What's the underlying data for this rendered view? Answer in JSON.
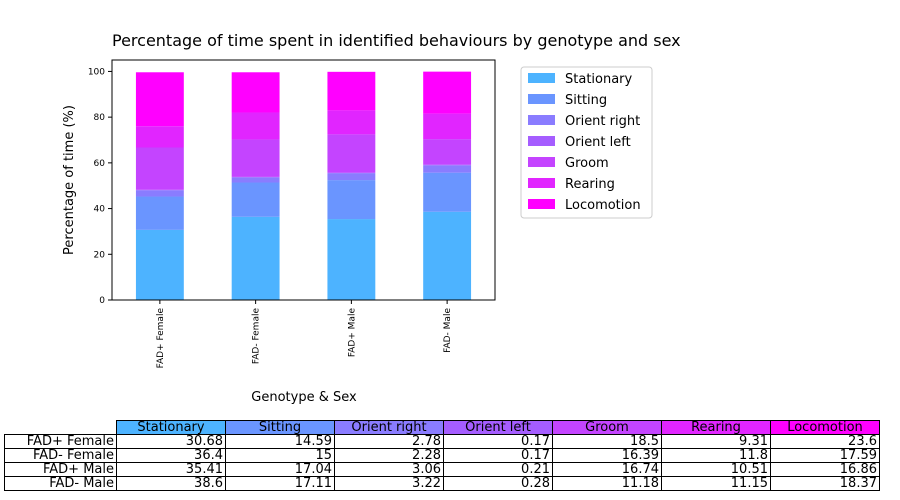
{
  "chart_data": {
    "type": "bar",
    "stacked": true,
    "title": "Percentage of time spent in identified behaviours by genotype and sex",
    "xlabel": "Genotype & Sex",
    "ylabel": "Percentage of time (%)",
    "ylim": [
      0,
      105
    ],
    "yticks": [
      0,
      20,
      40,
      60,
      80,
      100
    ],
    "grid": false,
    "legend_position": "right",
    "categories": [
      "FAD+ Female",
      "FAD- Female",
      "FAD+ Male",
      "FAD- Male"
    ],
    "series": [
      {
        "name": "Stationary",
        "color": "#4db3ff",
        "values": [
          30.68,
          36.4,
          35.41,
          38.6
        ]
      },
      {
        "name": "Sitting",
        "color": "#6a95ff",
        "values": [
          14.59,
          15.0,
          17.04,
          17.11
        ]
      },
      {
        "name": "Orient right",
        "color": "#8a7cff",
        "values": [
          2.78,
          2.28,
          3.06,
          3.22
        ]
      },
      {
        "name": "Orient left",
        "color": "#a55dff",
        "values": [
          0.17,
          0.17,
          0.21,
          0.28
        ]
      },
      {
        "name": "Groom",
        "color": "#c444ff",
        "values": [
          18.5,
          16.39,
          16.74,
          11.18
        ]
      },
      {
        "name": "Rearing",
        "color": "#e125ff",
        "values": [
          9.31,
          11.8,
          10.51,
          11.15
        ]
      },
      {
        "name": "Locomotion",
        "color": "#ff00ff",
        "values": [
          23.6,
          17.59,
          16.86,
          18.37
        ]
      }
    ]
  }
}
